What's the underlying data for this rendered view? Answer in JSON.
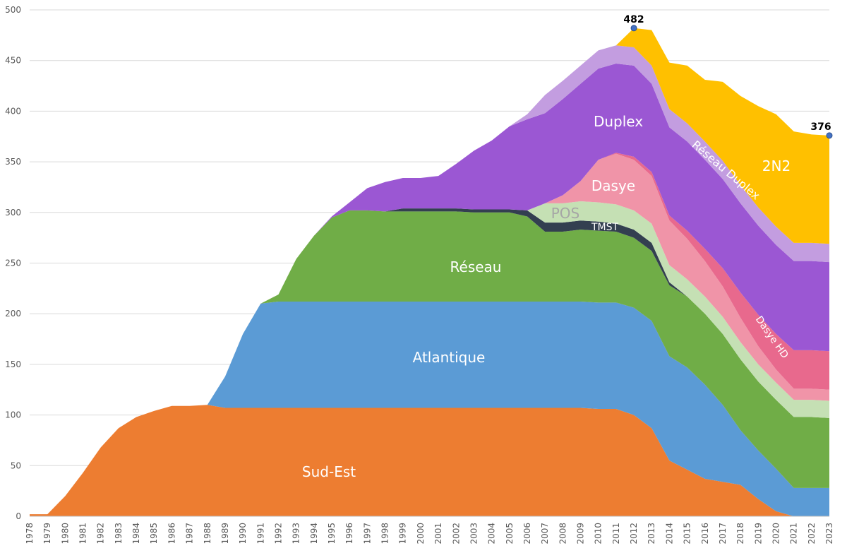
{
  "chart_data": {
    "type": "stacked-area",
    "categories": [
      "1978",
      "1979",
      "1980",
      "1981",
      "1982",
      "1983",
      "1984",
      "1985",
      "1986",
      "1987",
      "1988",
      "1989",
      "1990",
      "1991",
      "1992",
      "1993",
      "1994",
      "1995",
      "1996",
      "1997",
      "1998",
      "1999",
      "2000",
      "2001",
      "2002",
      "2003",
      "2004",
      "2005",
      "2006",
      "2007",
      "2008",
      "2009",
      "2010",
      "2011",
      "2012",
      "2013",
      "2014",
      "2015",
      "2016",
      "2017",
      "2018",
      "2019",
      "2020",
      "2021",
      "2022",
      "2023"
    ],
    "series": [
      {
        "name": "Sud-Est",
        "color": "#ED7D31",
        "values": [
          2,
          2,
          20,
          43,
          68,
          87,
          98,
          104,
          109,
          109,
          110,
          107,
          107,
          107,
          107,
          107,
          107,
          107,
          107,
          107,
          107,
          107,
          107,
          107,
          107,
          107,
          107,
          107,
          107,
          107,
          107,
          107,
          106,
          106,
          100,
          87,
          55,
          46,
          37,
          34,
          31,
          17,
          5,
          0,
          0,
          0
        ]
      },
      {
        "name": "Atlantique",
        "color": "#5B9BD5",
        "values": [
          0,
          0,
          0,
          0,
          0,
          0,
          0,
          0,
          0,
          0,
          0,
          31,
          73,
          103,
          105,
          105,
          105,
          105,
          105,
          105,
          105,
          105,
          105,
          105,
          105,
          105,
          105,
          105,
          105,
          105,
          105,
          105,
          105,
          105,
          106,
          106,
          103,
          101,
          93,
          76,
          54,
          48,
          42,
          28,
          28,
          28
        ]
      },
      {
        "name": "Réseau",
        "color": "#70AD47",
        "values": [
          0,
          0,
          0,
          0,
          0,
          0,
          0,
          0,
          0,
          0,
          0,
          0,
          0,
          0,
          7,
          42,
          65,
          83,
          90,
          90,
          89,
          89,
          89,
          89,
          89,
          88,
          88,
          88,
          84,
          69,
          69,
          71,
          71,
          70,
          69,
          69,
          70,
          70,
          70,
          70,
          70,
          68,
          68,
          70,
          70,
          69
        ]
      },
      {
        "name": "TMST",
        "color": "#333F50",
        "values": [
          0,
          0,
          0,
          0,
          0,
          0,
          0,
          0,
          0,
          0,
          0,
          0,
          0,
          0,
          0,
          0,
          0,
          0,
          0,
          0,
          0,
          3,
          3,
          3,
          3,
          3,
          3,
          3,
          6,
          9,
          9,
          9,
          9,
          8,
          8,
          8,
          3,
          0,
          0,
          0,
          0,
          0,
          0,
          0,
          0,
          0
        ]
      },
      {
        "name": "POS",
        "color": "#C5E0B4",
        "values": [
          0,
          0,
          0,
          0,
          0,
          0,
          0,
          0,
          0,
          0,
          0,
          0,
          0,
          0,
          0,
          0,
          0,
          0,
          0,
          0,
          0,
          0,
          0,
          0,
          0,
          0,
          0,
          0,
          0,
          19,
          19,
          19,
          19,
          19,
          19,
          19,
          17,
          17,
          17,
          17,
          17,
          17,
          17,
          17,
          17,
          17
        ]
      },
      {
        "name": "Dasye",
        "color": "#F094A8",
        "values": [
          0,
          0,
          0,
          0,
          0,
          0,
          0,
          0,
          0,
          0,
          0,
          0,
          0,
          0,
          0,
          0,
          0,
          0,
          0,
          0,
          0,
          0,
          0,
          0,
          0,
          0,
          0,
          0,
          0,
          0,
          8,
          20,
          42,
          50,
          50,
          47,
          44,
          40,
          35,
          30,
          24,
          18,
          13,
          11,
          11,
          11
        ]
      },
      {
        "name": "Dasye HD",
        "color": "#E8698D",
        "values": [
          0,
          0,
          0,
          0,
          0,
          0,
          0,
          0,
          0,
          0,
          0,
          0,
          0,
          0,
          0,
          0,
          0,
          0,
          0,
          0,
          0,
          0,
          0,
          0,
          0,
          0,
          0,
          0,
          0,
          0,
          0,
          0,
          0,
          1,
          3,
          4,
          5,
          8,
          12,
          18,
          25,
          31,
          35,
          38,
          38,
          38
        ]
      },
      {
        "name": "Duplex",
        "color": "#9B57D3",
        "values": [
          0,
          0,
          0,
          0,
          0,
          0,
          0,
          0,
          0,
          0,
          0,
          0,
          0,
          0,
          0,
          0,
          0,
          1,
          8,
          22,
          29,
          30,
          30,
          32,
          44,
          58,
          68,
          82,
          90,
          89,
          95,
          96,
          90,
          88,
          90,
          87,
          87,
          88,
          88,
          88,
          88,
          88,
          88,
          88,
          88,
          88
        ]
      },
      {
        "name": "Réseau Duplex",
        "color": "#C39DE0",
        "values": [
          0,
          0,
          0,
          0,
          0,
          0,
          0,
          0,
          0,
          0,
          0,
          0,
          0,
          0,
          0,
          0,
          0,
          0,
          0,
          0,
          0,
          0,
          0,
          0,
          0,
          0,
          0,
          0,
          5,
          18,
          18,
          18,
          18,
          18,
          18,
          18,
          18,
          18,
          18,
          18,
          18,
          18,
          18,
          18,
          18,
          18
        ]
      },
      {
        "name": "2N2",
        "color": "#FFC000",
        "values": [
          0,
          0,
          0,
          0,
          0,
          0,
          0,
          0,
          0,
          0,
          0,
          0,
          0,
          0,
          0,
          0,
          0,
          0,
          0,
          0,
          0,
          0,
          0,
          0,
          0,
          0,
          0,
          0,
          0,
          0,
          0,
          0,
          0,
          0,
          19,
          35,
          46,
          57,
          61,
          78,
          88,
          100,
          111,
          110,
          107,
          107
        ]
      }
    ],
    "annotations": [
      {
        "x": "2012",
        "value": 482
      },
      {
        "x": "2023",
        "value": 376
      }
    ],
    "ylim": [
      0,
      500
    ],
    "yticks": [
      0,
      50,
      100,
      150,
      200,
      250,
      300,
      350,
      400,
      450,
      500
    ],
    "grid": true
  }
}
